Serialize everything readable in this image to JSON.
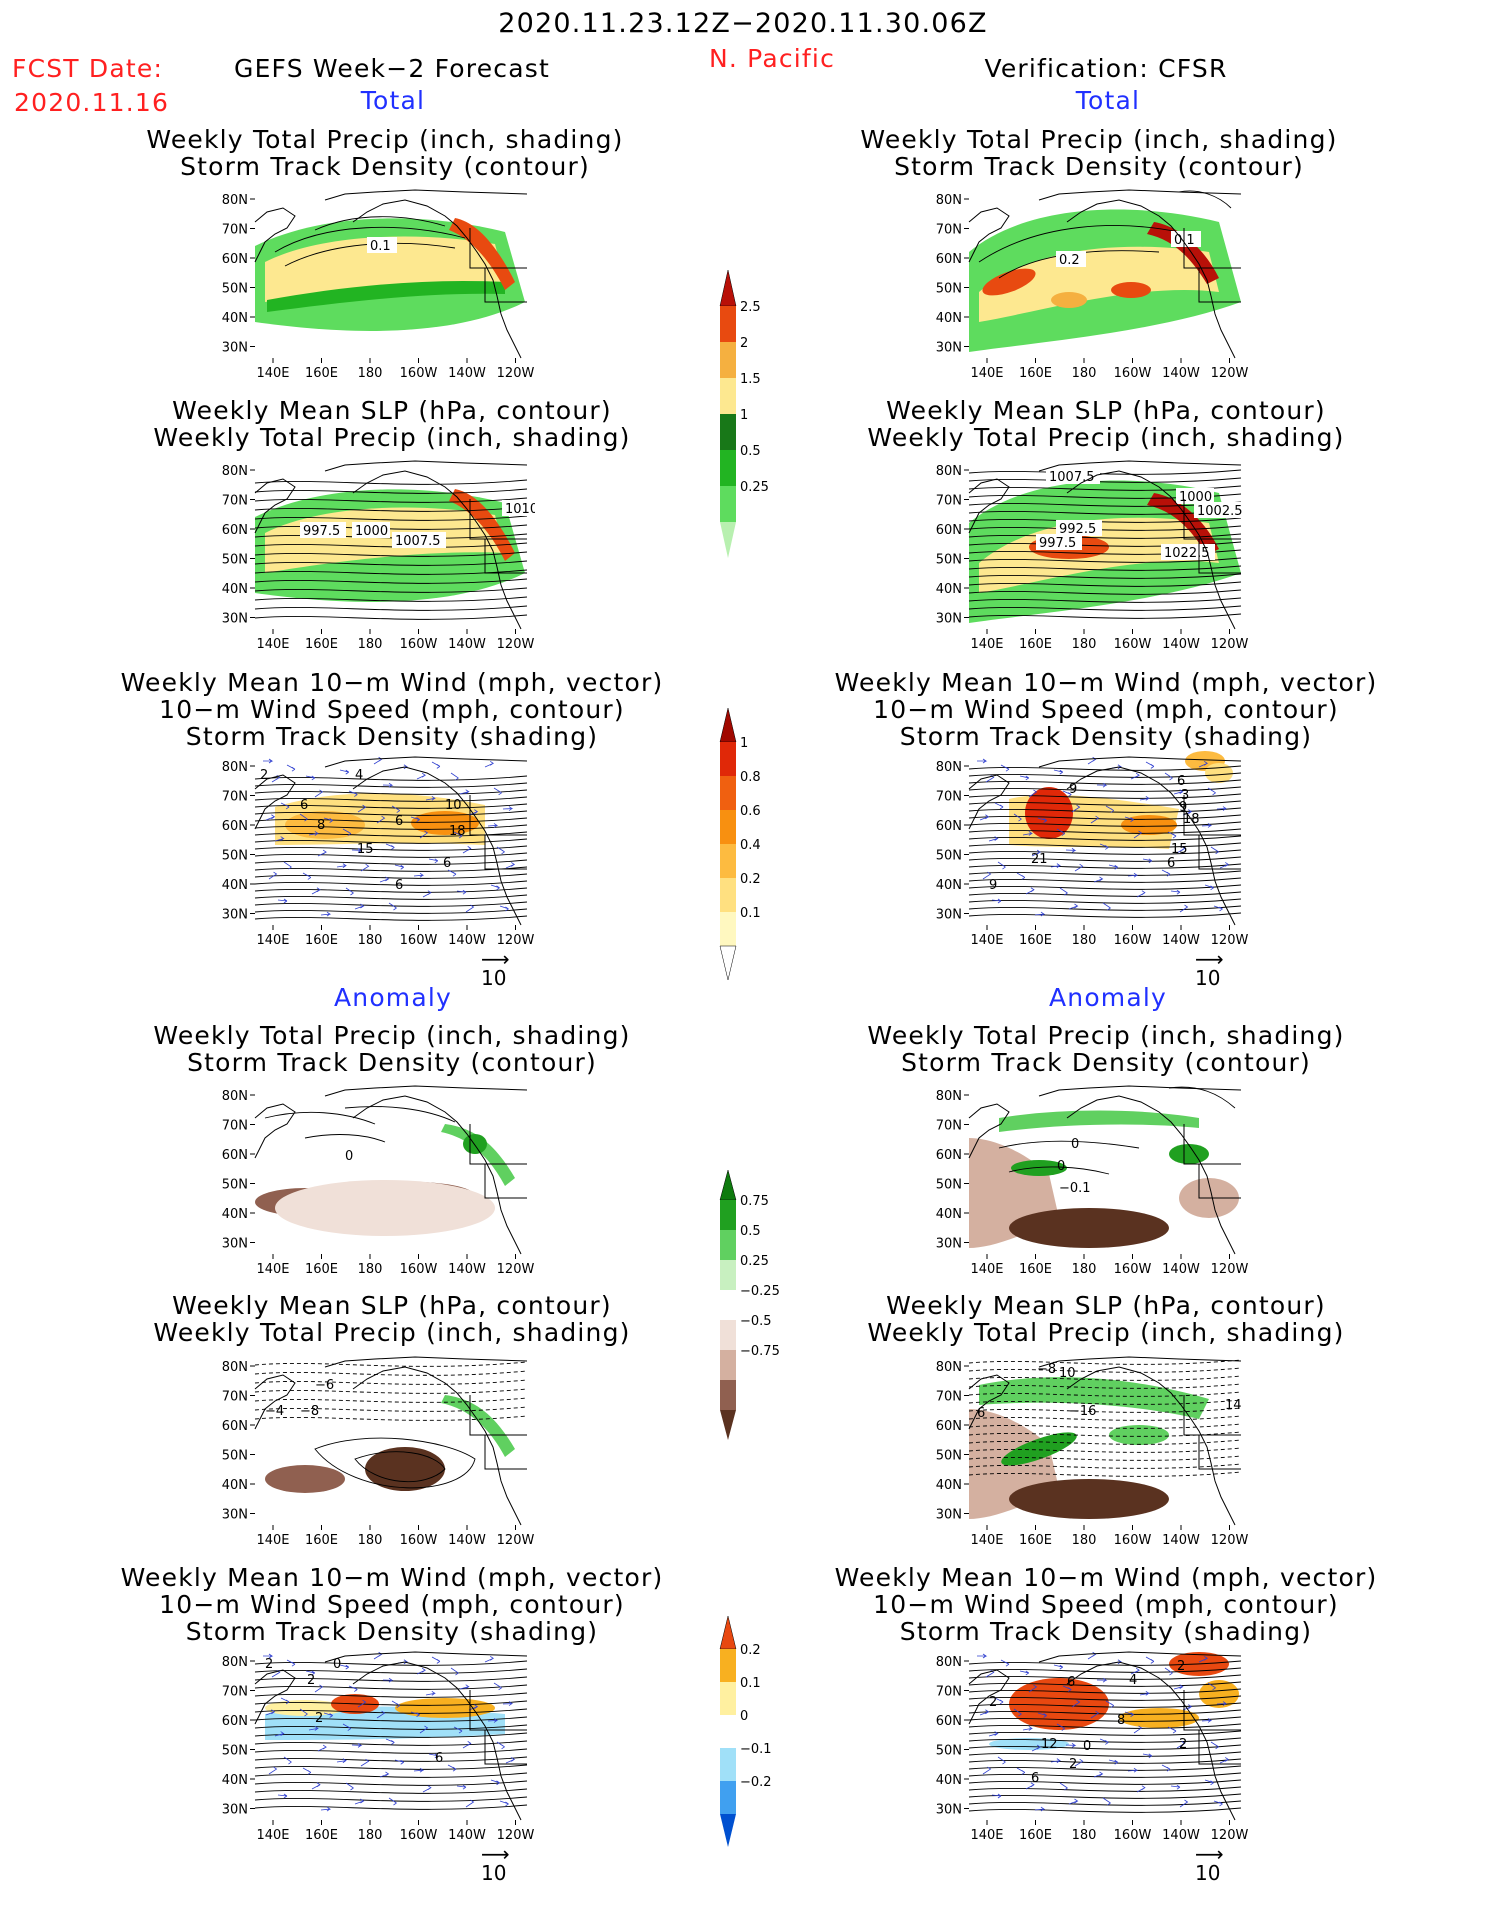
{
  "header": {
    "period": "2020.11.23.12Z−2020.11.30.06Z",
    "region": "N. Pacific",
    "fcst_label": "FCST Date:",
    "fcst_date": "2020.11.16",
    "left_title": "GEFS Week−2 Forecast",
    "right_title": "Verification: CFSR"
  },
  "sections": {
    "total": "Total",
    "anomaly": "Anomaly"
  },
  "panel_titles": {
    "precip_storm": "Weekly Total Precip (inch, shading)\nStorm Track Density (contour)",
    "slp_precip": "Weekly Mean SLP (hPa, contour)\nWeekly Total Precip (inch, shading)",
    "wind_storm": "Weekly Mean 10−m Wind (mph, vector)\n10−m Wind Speed (mph, contour)\nStorm Track Density (shading)"
  },
  "axes": {
    "lat_ticks": [
      "80N",
      "70N",
      "60N",
      "50N",
      "40N",
      "30N"
    ],
    "lon_ticks": [
      "140E",
      "160E",
      "180",
      "160W",
      "140W",
      "120W"
    ]
  },
  "vector_ref": "10",
  "colorbars": [
    {
      "id": "precip_total",
      "levels": [
        "0.25",
        "0.5",
        "1",
        "1.5",
        "2",
        "2.5"
      ],
      "colors": [
        "#b8f0b0",
        "#5edc5e",
        "#22b422",
        "#187818",
        "#fde890",
        "#f5b040",
        "#e84a10",
        "#b81008"
      ]
    },
    {
      "id": "storm_total",
      "levels": [
        "0.1",
        "0.2",
        "0.4",
        "0.6",
        "0.8",
        "1"
      ],
      "colors": [
        "#ffffff",
        "#fff8c0",
        "#ffe080",
        "#fdbb40",
        "#f89010",
        "#f06010",
        "#e02808",
        "#a00800"
      ]
    },
    {
      "id": "precip_anom",
      "levels": [
        "−0.75",
        "−0.5",
        "−0.25",
        "0.25",
        "0.5",
        "0.75"
      ],
      "colors": [
        "#5a3220",
        "#906050",
        "#d4b0a0",
        "#f0e0d8",
        "#ffffff",
        "#c8f0c0",
        "#60d060",
        "#20a020",
        "#0e7a0e"
      ]
    },
    {
      "id": "storm_anom",
      "levels": [
        "−0.2",
        "−0.1",
        "0",
        "0.1",
        "0.2"
      ],
      "colors": [
        "#0050d0",
        "#40a0f0",
        "#a0e0f8",
        "#ffffff",
        "#fff0a0",
        "#f8b020",
        "#e84810"
      ]
    }
  ],
  "contour_labels": {
    "gefs_total_precip": [
      "0.1"
    ],
    "cfsr_total_precip": [
      "0.2",
      "0.1"
    ],
    "gefs_total_slp": [
      "997.5",
      "1000",
      "1007.5",
      "1010"
    ],
    "cfsr_total_slp": [
      "1007.5",
      "1000",
      "1002.5",
      "992.5",
      "997.5",
      "1022.5"
    ],
    "gefs_total_wind": [
      "2",
      "4",
      "6",
      "8",
      "6",
      "10",
      "18",
      "15",
      "6",
      "6"
    ],
    "cfsr_total_wind": [
      "9",
      "6",
      "3",
      "9",
      "18",
      "21",
      "15",
      "6",
      "9"
    ],
    "gefs_anom_precip": [
      "0"
    ],
    "cfsr_anom_precip": [
      "0",
      "0",
      "−0.1"
    ],
    "gefs_anom_slp": [
      "−6",
      "−4",
      "−8"
    ],
    "cfsr_anom_slp": [
      "−8",
      "10",
      "−16",
      "6",
      "14"
    ],
    "gefs_anom_wind": [
      "2",
      "0",
      "2",
      "2",
      "6"
    ],
    "cfsr_anom_wind": [
      "6",
      "4",
      "2",
      "2",
      "8",
      "12",
      "0",
      "2",
      "2",
      "6"
    ]
  }
}
